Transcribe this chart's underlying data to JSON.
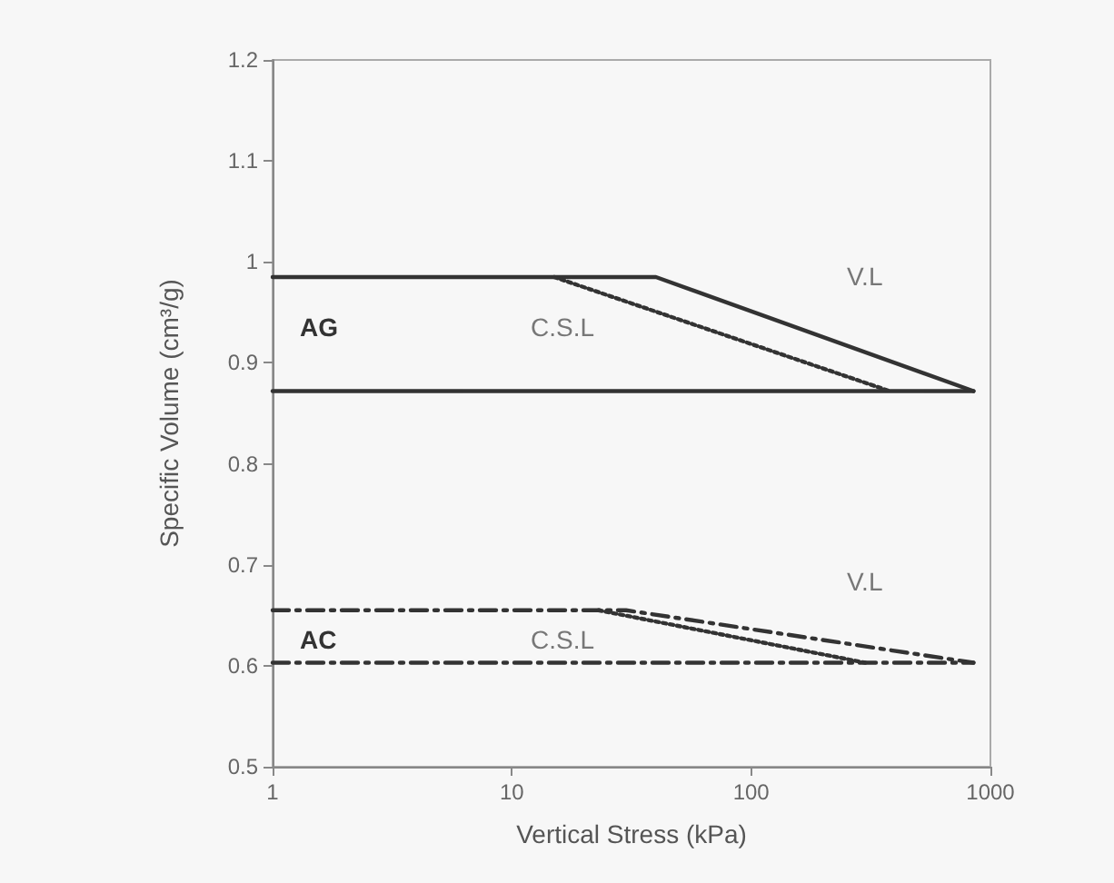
{
  "chart_data": {
    "type": "line",
    "xlabel": "Vertical Stress (kPa)",
    "ylabel": "Specific Volume (cm³/g)",
    "log": "x",
    "xlim": [
      1,
      1000
    ],
    "xticks": [
      1,
      10,
      100,
      1000
    ],
    "ylim": [
      0.5,
      1.2
    ],
    "yticks": [
      0.5,
      0.6,
      0.7,
      0.8,
      0.9,
      1,
      1.1,
      1.2
    ],
    "grid": false,
    "marker": "none",
    "series": [
      {
        "color": "#333333",
        "line_style": "solid",
        "x": [
          1,
          40,
          850
        ],
        "values": [
          0.985,
          0.985,
          0.872
        ]
      },
      {
        "color": "#333333",
        "line_style": "solid",
        "x": [
          1,
          850
        ],
        "values": [
          0.872,
          0.872
        ]
      },
      {
        "color": "#333333",
        "line_style": "dotted",
        "x": [
          15,
          380
        ],
        "values": [
          0.985,
          0.872
        ]
      },
      {
        "color": "#333333",
        "line_style": "dashed",
        "x": [
          1,
          30,
          850
        ],
        "values": [
          0.655,
          0.655,
          0.603
        ]
      },
      {
        "color": "#333333",
        "line_style": "dashed",
        "x": [
          1,
          850
        ],
        "values": [
          0.603,
          0.603
        ]
      },
      {
        "color": "#333333",
        "line_style": "dotted",
        "x": [
          23,
          300
        ],
        "values": [
          0.655,
          0.603
        ]
      }
    ],
    "annotations": [
      "AG",
      "C.S.L",
      "V.L",
      "AC",
      "C.S.L",
      "V.L"
    ]
  }
}
